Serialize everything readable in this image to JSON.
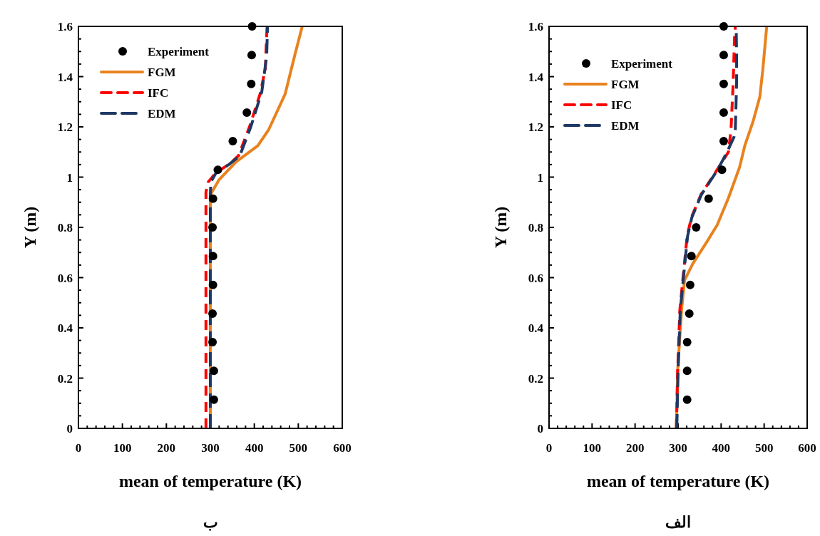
{
  "chart_data": [
    {
      "type": "line",
      "xlabel": "mean of temperature (K)",
      "ylabel": "Y (m)",
      "xlim": [
        0,
        600
      ],
      "ylim": [
        0,
        1.6
      ],
      "xticks": [
        0,
        {
          "value": 20,
          "label": null
        },
        {
          "value": 40,
          "label": null
        },
        {
          "value": 60,
          "label": null
        },
        {
          "value": 80,
          "label": null
        },
        100,
        {
          "value": 120,
          "label": null
        },
        {
          "value": 140,
          "label": null
        },
        {
          "value": 160,
          "label": null
        },
        {
          "value": 180,
          "label": null
        },
        200,
        {
          "value": 220,
          "label": null
        },
        {
          "value": 240,
          "label": null
        },
        {
          "value": 260,
          "label": null
        },
        {
          "value": 280,
          "label": null
        },
        300,
        {
          "value": 320,
          "label": null
        },
        {
          "value": 340,
          "label": null
        },
        {
          "value": 360,
          "label": null
        },
        {
          "value": 380,
          "label": null
        },
        400,
        {
          "value": 420,
          "label": null
        },
        {
          "value": 440,
          "label": null
        },
        {
          "value": 460,
          "label": null
        },
        {
          "value": 480,
          "label": null
        },
        500,
        {
          "value": 520,
          "label": null
        },
        {
          "value": 540,
          "label": null
        },
        {
          "value": 560,
          "label": null
        },
        {
          "value": 580,
          "label": null
        },
        600
      ],
      "yticks": [
        0,
        {
          "value": 0.05,
          "label": null
        },
        {
          "value": 0.1,
          "label": null
        },
        {
          "value": 0.15,
          "label": null
        },
        0.2,
        {
          "value": 0.25,
          "label": null
        },
        {
          "value": 0.3,
          "label": null
        },
        {
          "value": 0.35,
          "label": null
        },
        0.4,
        {
          "value": 0.45,
          "label": null
        },
        {
          "value": 0.5,
          "label": null
        },
        {
          "value": 0.55,
          "label": null
        },
        0.6,
        {
          "value": 0.65,
          "label": null
        },
        {
          "value": 0.7,
          "label": null
        },
        {
          "value": 0.75,
          "label": null
        },
        0.8,
        {
          "value": 0.85,
          "label": null
        },
        {
          "value": 0.9,
          "label": null
        },
        {
          "value": 0.95,
          "label": null
        },
        1,
        {
          "value": 1.05,
          "label": null
        },
        {
          "value": 1.1,
          "label": null
        },
        {
          "value": 1.15,
          "label": null
        },
        1.2,
        {
          "value": 1.25,
          "label": null
        },
        {
          "value": 1.3,
          "label": null
        },
        {
          "value": 1.35,
          "label": null
        },
        1.4,
        {
          "value": 1.45,
          "label": null
        },
        {
          "value": 1.5,
          "label": null
        },
        {
          "value": 1.55,
          "label": null
        },
        1.6
      ],
      "legend": "top left",
      "annotations": [
        "ب"
      ],
      "series": [
        {
          "name": "Experiment",
          "type": "scatter",
          "marker": "circle",
          "color": "#000000",
          "x": [
            308,
            308,
            305,
            305,
            306,
            306,
            305,
            306,
            317,
            351,
            383,
            393,
            394,
            395
          ],
          "values": [
            0.114,
            0.229,
            0.343,
            0.457,
            0.571,
            0.686,
            0.8,
            0.914,
            1.029,
            1.143,
            1.257,
            1.371,
            1.486,
            1.6
          ]
        },
        {
          "name": "FGM",
          "type": "line",
          "line_style": "solid",
          "color": "#e8821e",
          "x": [
            300,
            300,
            320,
            358,
            408,
            433,
            470,
            492,
            509
          ],
          "values": [
            0,
            0.93,
            0.99,
            1.06,
            1.125,
            1.19,
            1.33,
            1.485,
            1.6
          ]
        },
        {
          "name": "IFC",
          "type": "line",
          "line_style": "dashed",
          "color": "#ff0000",
          "x": [
            290,
            290,
            295,
            314,
            342,
            364,
            389,
            413,
            425,
            429
          ],
          "values": [
            0,
            0.94,
            0.98,
            1.02,
            1.05,
            1.085,
            1.2,
            1.33,
            1.43,
            1.6
          ]
        },
        {
          "name": "EDM",
          "type": "line",
          "line_style": "dashed",
          "color": "#1f3864",
          "x": [
            300,
            300,
            301,
            314,
            342,
            367,
            392,
            417,
            428,
            430
          ],
          "values": [
            0,
            0.93,
            0.98,
            1.02,
            1.05,
            1.085,
            1.2,
            1.34,
            1.48,
            1.6
          ]
        }
      ]
    },
    {
      "type": "line",
      "xlabel": "mean of temperature (K)",
      "ylabel": "Y (m)",
      "xlim": [
        0,
        600
      ],
      "ylim": [
        0,
        1.6
      ],
      "xticks": [
        0,
        {
          "value": 20,
          "label": null
        },
        {
          "value": 40,
          "label": null
        },
        {
          "value": 60,
          "label": null
        },
        {
          "value": 80,
          "label": null
        },
        100,
        {
          "value": 120,
          "label": null
        },
        {
          "value": 140,
          "label": null
        },
        {
          "value": 160,
          "label": null
        },
        {
          "value": 180,
          "label": null
        },
        200,
        {
          "value": 220,
          "label": null
        },
        {
          "value": 240,
          "label": null
        },
        {
          "value": 260,
          "label": null
        },
        {
          "value": 280,
          "label": null
        },
        300,
        {
          "value": 320,
          "label": null
        },
        {
          "value": 340,
          "label": null
        },
        {
          "value": 360,
          "label": null
        },
        {
          "value": 380,
          "label": null
        },
        400,
        {
          "value": 420,
          "label": null
        },
        {
          "value": 440,
          "label": null
        },
        {
          "value": 460,
          "label": null
        },
        {
          "value": 480,
          "label": null
        },
        500,
        {
          "value": 520,
          "label": null
        },
        {
          "value": 540,
          "label": null
        },
        {
          "value": 560,
          "label": null
        },
        {
          "value": 580,
          "label": null
        },
        600
      ],
      "yticks": [
        0,
        {
          "value": 0.05,
          "label": null
        },
        {
          "value": 0.1,
          "label": null
        },
        {
          "value": 0.15,
          "label": null
        },
        0.2,
        {
          "value": 0.25,
          "label": null
        },
        {
          "value": 0.3,
          "label": null
        },
        {
          "value": 0.35,
          "label": null
        },
        0.4,
        {
          "value": 0.45,
          "label": null
        },
        {
          "value": 0.5,
          "label": null
        },
        {
          "value": 0.55,
          "label": null
        },
        0.6,
        {
          "value": 0.65,
          "label": null
        },
        {
          "value": 0.7,
          "label": null
        },
        {
          "value": 0.75,
          "label": null
        },
        0.8,
        {
          "value": 0.85,
          "label": null
        },
        {
          "value": 0.9,
          "label": null
        },
        {
          "value": 0.95,
          "label": null
        },
        1,
        {
          "value": 1.05,
          "label": null
        },
        {
          "value": 1.1,
          "label": null
        },
        {
          "value": 1.15,
          "label": null
        },
        1.2,
        {
          "value": 1.25,
          "label": null
        },
        {
          "value": 1.3,
          "label": null
        },
        {
          "value": 1.35,
          "label": null
        },
        1.4,
        {
          "value": 1.45,
          "label": null
        },
        {
          "value": 1.5,
          "label": null
        },
        {
          "value": 1.55,
          "label": null
        },
        1.6
      ],
      "legend": "top left",
      "annotations": [
        "الف"
      ],
      "series": [
        {
          "name": "Experiment",
          "type": "scatter",
          "marker": "circle",
          "color": "#000000",
          "x": [
            321,
            321,
            321,
            326,
            328,
            331,
            342,
            371,
            402,
            406,
            406,
            406,
            406,
            406
          ],
          "values": [
            0.114,
            0.229,
            0.343,
            0.457,
            0.571,
            0.686,
            0.8,
            0.914,
            1.029,
            1.143,
            1.257,
            1.371,
            1.486,
            1.6
          ]
        },
        {
          "name": "FGM",
          "type": "line",
          "line_style": "solid",
          "color": "#e8821e",
          "x": [
            296,
            299,
            308,
            315,
            334,
            366,
            391,
            417,
            443,
            455,
            474,
            490,
            497,
            506
          ],
          "values": [
            0,
            0.23,
            0.47,
            0.59,
            0.655,
            0.74,
            0.81,
            0.917,
            1.04,
            1.125,
            1.22,
            1.32,
            1.43,
            1.6
          ]
        },
        {
          "name": "IFC",
          "type": "line",
          "line_style": "dashed",
          "color": "#ff0000",
          "x": [
            296,
            299,
            304,
            312,
            321,
            331,
            353,
            391,
            417,
            423,
            428,
            431,
            433
          ],
          "values": [
            0,
            0.23,
            0.47,
            0.61,
            0.765,
            0.84,
            0.93,
            1.03,
            1.1,
            1.19,
            1.375,
            1.55,
            1.6
          ]
        },
        {
          "name": "EDM",
          "type": "line",
          "line_style": "dashed",
          "color": "#1f3864",
          "x": [
            297,
            300,
            305,
            313,
            322,
            332,
            354,
            392,
            414,
            430,
            433,
            436,
            436,
            435
          ],
          "values": [
            0,
            0.23,
            0.47,
            0.61,
            0.765,
            0.84,
            0.93,
            1.03,
            1.1,
            1.16,
            1.19,
            1.375,
            1.48,
            1.6
          ]
        }
      ]
    }
  ]
}
